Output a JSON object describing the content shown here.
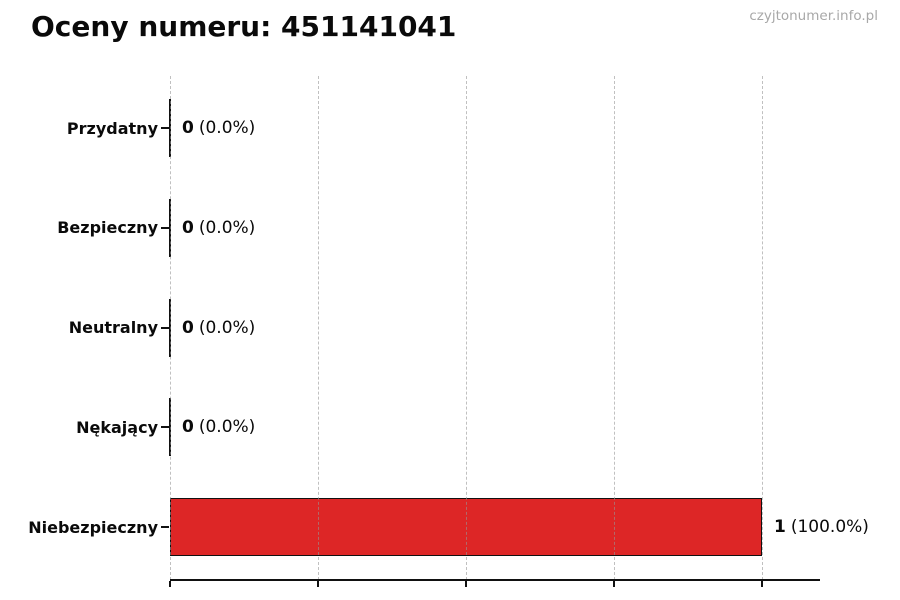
{
  "header": {
    "title": "Oceny numeru: 451141041",
    "watermark": "czyjtonumer.info.pl"
  },
  "chart_data": {
    "type": "bar",
    "orientation": "horizontal",
    "title": "Oceny numeru: 451141041",
    "categories": [
      "Przydatny",
      "Bezpieczny",
      "Neutralny",
      "Nękający",
      "Niebezpieczny"
    ],
    "values": [
      0,
      0,
      0,
      0,
      1
    ],
    "counts": [
      "0",
      "0",
      "0",
      "0",
      "1"
    ],
    "percents": [
      "(0.0%)",
      "(0.0%)",
      "(0.0%)",
      "(0.0%)",
      "(100.0%)"
    ],
    "value_label_format": "count (percent)",
    "xlim": [
      0,
      1.1
    ],
    "x_ticks": [
      0,
      0.25,
      0.5,
      0.75,
      1.0
    ],
    "x_tick_labels": [],
    "grid": "vertical-dashed",
    "legend": "none",
    "bar_color": "#dd2626",
    "bar_edge_color": "#111111",
    "grid_color": "#c9c9c9",
    "axis_color": "#111111",
    "text_color": "#0a0a0a",
    "watermark_color": "#a8a8a8"
  }
}
